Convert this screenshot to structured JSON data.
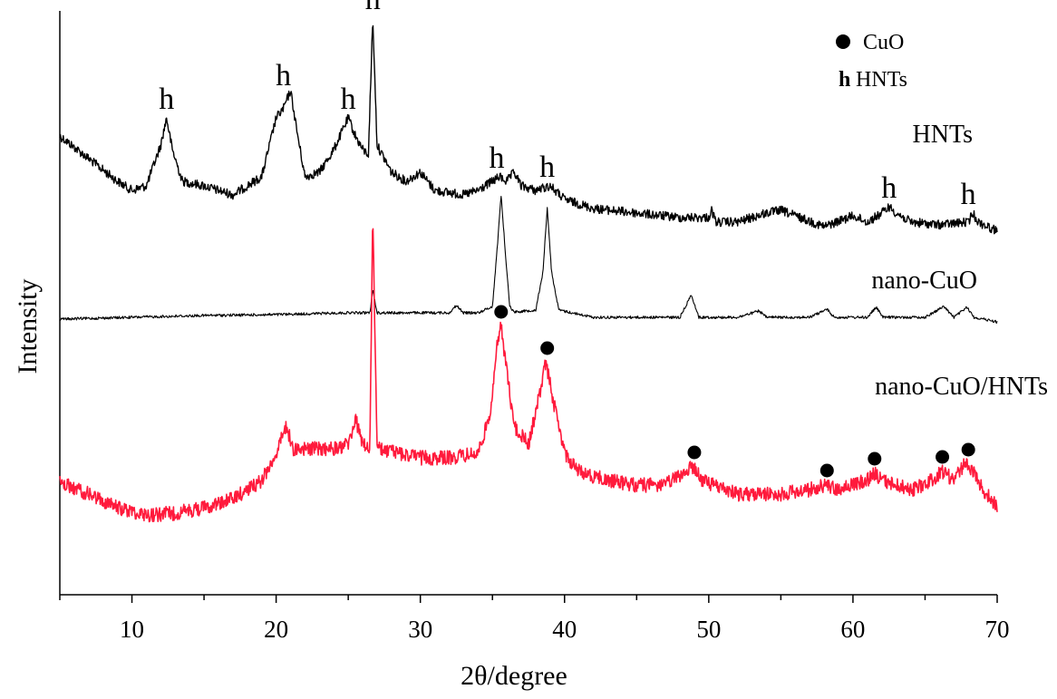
{
  "chart_data": {
    "type": "line",
    "xlabel": "2θ/degree",
    "ylabel": "Intensity",
    "xlim": [
      5,
      70
    ],
    "xticks": [
      10,
      20,
      30,
      40,
      50,
      60,
      70
    ],
    "yticks_shown": false,
    "legend": {
      "placement": "top-right",
      "entries": [
        {
          "symbol": "●",
          "label": "CuO"
        },
        {
          "symbol": "h",
          "label": "HNTs"
        }
      ]
    },
    "series": [
      {
        "name": "HNTs",
        "color": "#000000",
        "points": [
          [
            5,
            150
          ],
          [
            7,
            175
          ],
          [
            9,
            200
          ],
          [
            10,
            210
          ],
          [
            11,
            205
          ],
          [
            12,
            160
          ],
          [
            12.4,
            130
          ],
          [
            12.8,
            165
          ],
          [
            13.5,
            200
          ],
          [
            15,
            205
          ],
          [
            17,
            215
          ],
          [
            18,
            205
          ],
          [
            19,
            195
          ],
          [
            20,
            130
          ],
          [
            20.5,
            120
          ],
          [
            21,
            100
          ],
          [
            21.5,
            150
          ],
          [
            22,
            195
          ],
          [
            23,
            190
          ],
          [
            24,
            165
          ],
          [
            25,
            130
          ],
          [
            25.5,
            150
          ],
          [
            26,
            165
          ],
          [
            26.4,
            170
          ],
          [
            26.7,
            20
          ],
          [
            27,
            160
          ],
          [
            28,
            190
          ],
          [
            29,
            200
          ],
          [
            30,
            190
          ],
          [
            31,
            210
          ],
          [
            33,
            215
          ],
          [
            34,
            210
          ],
          [
            35,
            200
          ],
          [
            35.5,
            195
          ],
          [
            36,
            200
          ],
          [
            36.5,
            190
          ],
          [
            37,
            205
          ],
          [
            38,
            210
          ],
          [
            39,
            205
          ],
          [
            40,
            220
          ],
          [
            42,
            230
          ],
          [
            45,
            235
          ],
          [
            48,
            240
          ],
          [
            50,
            240
          ],
          [
            50.2,
            232
          ],
          [
            50.5,
            245
          ],
          [
            52,
            245
          ],
          [
            54,
            235
          ],
          [
            55,
            232
          ],
          [
            56,
            238
          ],
          [
            58,
            250
          ],
          [
            60,
            238
          ],
          [
            61,
            245
          ],
          [
            62,
            235
          ],
          [
            62.5,
            228
          ],
          [
            63,
            235
          ],
          [
            64,
            245
          ],
          [
            66,
            248
          ],
          [
            68,
            245
          ],
          [
            68.3,
            235
          ],
          [
            68.7,
            245
          ],
          [
            70,
            255
          ]
        ]
      },
      {
        "name": "nano-CuO",
        "color": "#000000",
        "points": [
          [
            5,
            352
          ],
          [
            10,
            350
          ],
          [
            15,
            348
          ],
          [
            20,
            347
          ],
          [
            25,
            345
          ],
          [
            26.5,
            345
          ],
          [
            26.7,
            320
          ],
          [
            27,
            345
          ],
          [
            30,
            345
          ],
          [
            32,
            345
          ],
          [
            32.5,
            337
          ],
          [
            33,
            345
          ],
          [
            34,
            345
          ],
          [
            35,
            338
          ],
          [
            35.3,
            280
          ],
          [
            35.6,
            215
          ],
          [
            35.9,
            280
          ],
          [
            36.2,
            338
          ],
          [
            36.5,
            344
          ],
          [
            38,
            342
          ],
          [
            38.5,
            300
          ],
          [
            38.8,
            230
          ],
          [
            39.1,
            300
          ],
          [
            39.6,
            342
          ],
          [
            42,
            350
          ],
          [
            45,
            350
          ],
          [
            48,
            350
          ],
          [
            48.8,
            325
          ],
          [
            49.3,
            350
          ],
          [
            52,
            350
          ],
          [
            53.5,
            343
          ],
          [
            54,
            350
          ],
          [
            57,
            350
          ],
          [
            58.2,
            341
          ],
          [
            58.7,
            350
          ],
          [
            61,
            350
          ],
          [
            61.6,
            339
          ],
          [
            62.1,
            350
          ],
          [
            65,
            350
          ],
          [
            66.3,
            338
          ],
          [
            67,
            350
          ],
          [
            67.9,
            339
          ],
          [
            68.4,
            350
          ],
          [
            70,
            355
          ]
        ]
      },
      {
        "name": "nano-CuO/HNTs",
        "color": "#ff1a3c",
        "points": [
          [
            5,
            532
          ],
          [
            7,
            545
          ],
          [
            9,
            560
          ],
          [
            11,
            568
          ],
          [
            13,
            566
          ],
          [
            15,
            560
          ],
          [
            17,
            550
          ],
          [
            19,
            530
          ],
          [
            20,
            500
          ],
          [
            20.7,
            470
          ],
          [
            21.2,
            495
          ],
          [
            22,
            495
          ],
          [
            24,
            495
          ],
          [
            25,
            490
          ],
          [
            25.5,
            462
          ],
          [
            26,
            490
          ],
          [
            26.5,
            495
          ],
          [
            26.7,
            235
          ],
          [
            27,
            495
          ],
          [
            28,
            498
          ],
          [
            30,
            505
          ],
          [
            32,
            505
          ],
          [
            34,
            500
          ],
          [
            34.8,
            460
          ],
          [
            35.3,
            385
          ],
          [
            35.6,
            360
          ],
          [
            36,
            410
          ],
          [
            36.5,
            470
          ],
          [
            37.5,
            490
          ],
          [
            38.2,
            440
          ],
          [
            38.7,
            400
          ],
          [
            39.2,
            440
          ],
          [
            40,
            500
          ],
          [
            41,
            520
          ],
          [
            43,
            530
          ],
          [
            45,
            535
          ],
          [
            47,
            535
          ],
          [
            48.6,
            518
          ],
          [
            49,
            515
          ],
          [
            49.5,
            530
          ],
          [
            52,
            545
          ],
          [
            55,
            545
          ],
          [
            57,
            540
          ],
          [
            58,
            535
          ],
          [
            59,
            540
          ],
          [
            61,
            530
          ],
          [
            61.5,
            522
          ],
          [
            62,
            530
          ],
          [
            64,
            540
          ],
          [
            65,
            535
          ],
          [
            66.2,
            520
          ],
          [
            67,
            530
          ],
          [
            67.7,
            512
          ],
          [
            68.3,
            518
          ],
          [
            69,
            540
          ],
          [
            70,
            558
          ]
        ]
      }
    ],
    "annotations": [
      {
        "text": "h",
        "series": "HNTs",
        "x": 12.4
      },
      {
        "text": "h",
        "series": "HNTs",
        "x": 20.5
      },
      {
        "text": "h",
        "series": "HNTs",
        "x": 25.0
      },
      {
        "text": "h",
        "series": "HNTs",
        "x": 26.7
      },
      {
        "text": "h",
        "series": "HNTs",
        "x": 35.3
      },
      {
        "text": "h",
        "series": "HNTs",
        "x": 38.8
      },
      {
        "text": "h",
        "series": "HNTs",
        "x": 62.5
      },
      {
        "text": "h",
        "series": "HNTs",
        "x": 68.0
      },
      {
        "text": "●",
        "series": "nano-CuO/HNTs",
        "x": 35.6
      },
      {
        "text": "●",
        "series": "nano-CuO/HNTs",
        "x": 38.8
      },
      {
        "text": "●",
        "series": "nano-CuO/HNTs",
        "x": 49.0
      },
      {
        "text": "●",
        "series": "nano-CuO/HNTs",
        "x": 58.2
      },
      {
        "text": "●",
        "series": "nano-CuO/HNTs",
        "x": 61.5
      },
      {
        "text": "●",
        "series": "nano-CuO/HNTs",
        "x": 66.2
      },
      {
        "text": "●",
        "series": "nano-CuO/HNTs",
        "x": 68.0
      }
    ]
  }
}
